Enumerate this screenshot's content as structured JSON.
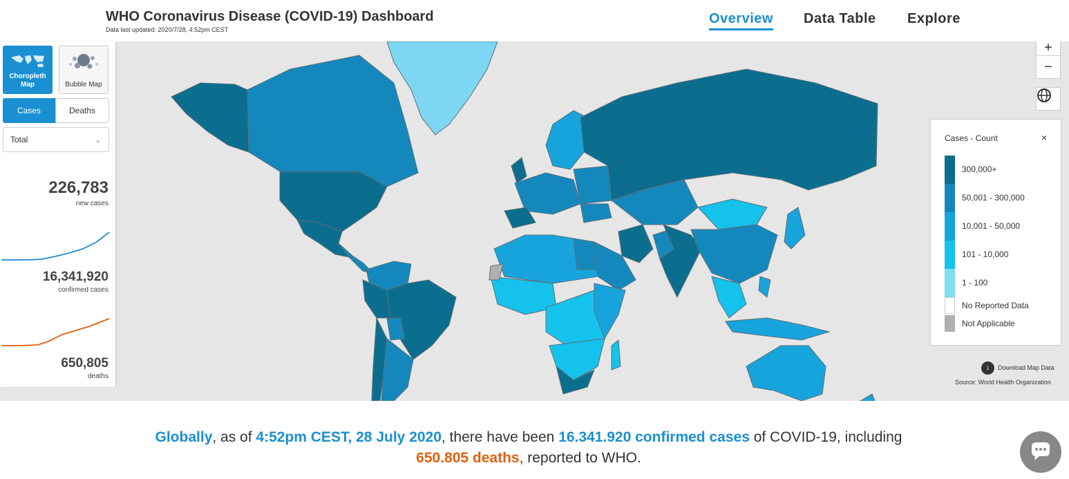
{
  "header": {
    "title": "WHO Coronavirus Disease (COVID-19) Dashboard",
    "subtitle": "Data last updated: 2020/7/28, 4:52pm CEST",
    "nav": {
      "overview": "Overview",
      "data_table": "Data Table",
      "explore": "Explore"
    }
  },
  "left_panel": {
    "map_types": {
      "choropleth": "Choropleth Map",
      "bubble": "Bubble Map"
    },
    "metric_tabs": {
      "cases": "Cases",
      "deaths": "Deaths"
    },
    "period_select": "Total",
    "stats": {
      "new_cases": "226,783",
      "new_cases_label": "new cases",
      "confirmed": "16,341,920",
      "confirmed_label": "confirmed cases",
      "deaths": "650,805",
      "deaths_label": "deaths"
    }
  },
  "legend": {
    "title": "Cases - Count",
    "close": "×",
    "items": [
      {
        "label": "300,000+",
        "color": "#0c6e8f"
      },
      {
        "label": "50,001 - 300,000",
        "color": "#1488bc"
      },
      {
        "label": "10,001 - 50,000",
        "color": "#17a4dc"
      },
      {
        "label": "101 - 10,000",
        "color": "#14c2ec"
      },
      {
        "label": "1 - 100",
        "color": "#82dcf2"
      },
      {
        "label": "No Reported Data",
        "color": "#ffffff"
      },
      {
        "label": "Not Applicable",
        "color": "#b0b0b0"
      }
    ]
  },
  "map_controls": {
    "zoom_in": "+",
    "zoom_out": "−",
    "globe_icon": "globe-icon"
  },
  "download": {
    "label": "Download Map Data"
  },
  "source": "Source: World Health Organization",
  "summary": {
    "globally": "Globally",
    "as_of": ", as of ",
    "time": "4:52pm CEST, 28 July 2020",
    "there_have_been": ", there have been ",
    "confirmed": "16.341.920 confirmed cases",
    "of_covid": " of COVID-19, including",
    "deaths": "650.805 deaths",
    "reported": ", reported to WHO."
  },
  "colors": {
    "accent": "#1a8fd1",
    "orange": "#e0600f"
  }
}
